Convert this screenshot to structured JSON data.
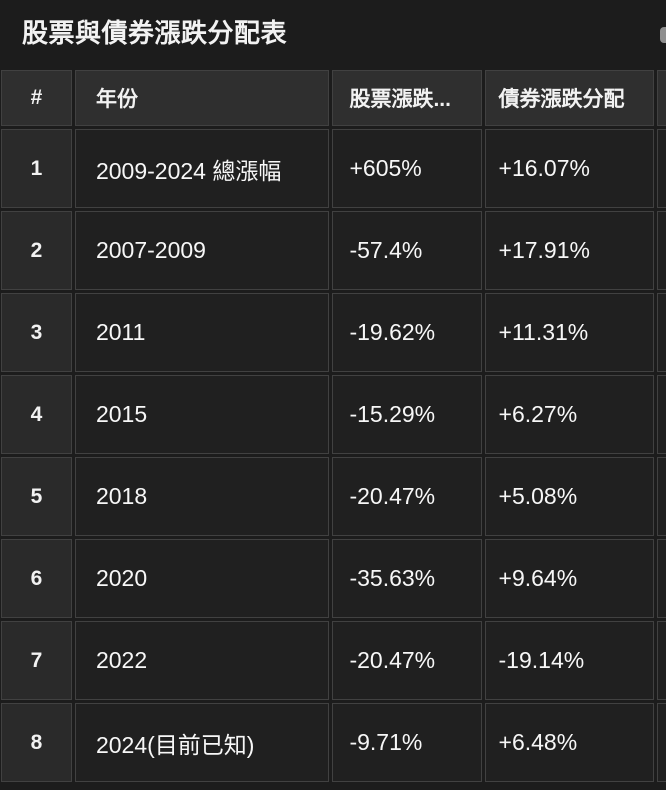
{
  "title": "股票與債券漲跌分配表",
  "colors": {
    "page_bg": "#1c1c1c",
    "header_cell_bg": "#2f2f2f",
    "index_cell_bg": "#2a2a2a",
    "data_cell_bg": "#202020",
    "grid_border": "#414141",
    "text": "#f5f5f7"
  },
  "table": {
    "columns": [
      {
        "label": "#"
      },
      {
        "label": "年份"
      },
      {
        "label": "股票漲跌..."
      },
      {
        "label": "債券漲跌分配"
      },
      {
        "label": ""
      }
    ],
    "rows": [
      {
        "index": "1",
        "year": "2009-2024 總漲幅",
        "stock_change": "+605%",
        "bond_change": "+16.07%",
        "more": ""
      },
      {
        "index": "2",
        "year": "2007-2009",
        "stock_change": "-57.4%",
        "bond_change": "+17.91%",
        "more": ""
      },
      {
        "index": "3",
        "year": "2011",
        "stock_change": "-19.62%",
        "bond_change": "+11.31%",
        "more": ""
      },
      {
        "index": "4",
        "year": "2015",
        "stock_change": "-15.29%",
        "bond_change": "+6.27%",
        "more": ""
      },
      {
        "index": "5",
        "year": "2018",
        "stock_change": "-20.47%",
        "bond_change": "+5.08%",
        "more": ""
      },
      {
        "index": "6",
        "year": "2020",
        "stock_change": "-35.63%",
        "bond_change": "+9.64%",
        "more": ""
      },
      {
        "index": "7",
        "year": "2022",
        "stock_change": "-20.47%",
        "bond_change": "-19.14%",
        "more": ""
      },
      {
        "index": "8",
        "year": "2024(目前已知)",
        "stock_change": "-9.71%",
        "bond_change": "+6.48%",
        "more": ""
      }
    ]
  }
}
